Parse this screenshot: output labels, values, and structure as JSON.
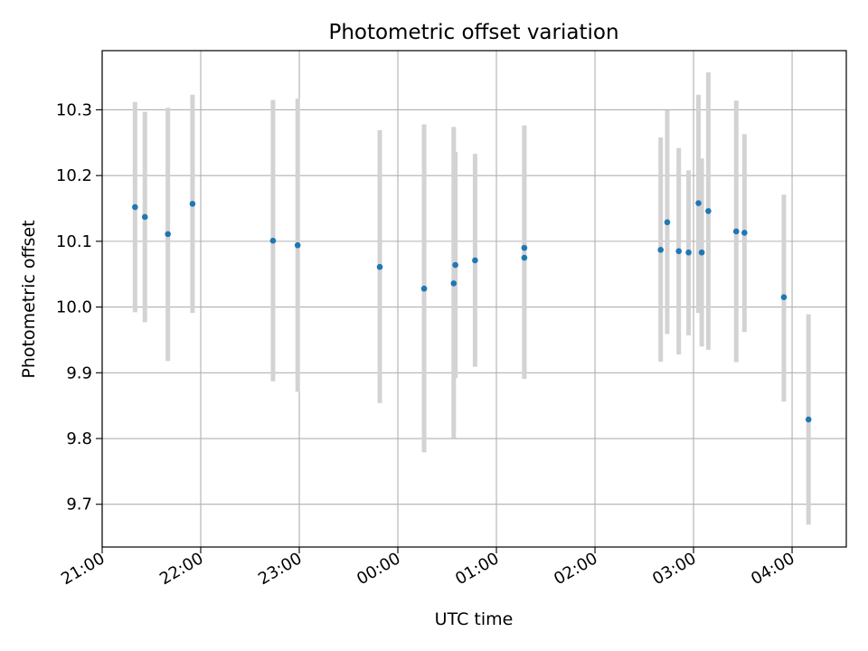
{
  "chart_data": {
    "type": "scatter",
    "title": "Photometric offset variation",
    "xlabel": "UTC time",
    "ylabel": "Photometric offset",
    "x_unit": "UTC hh:mm",
    "xlim": [
      "21:00",
      "04:33"
    ],
    "ylim": [
      9.635,
      10.39
    ],
    "x_ticks": [
      "21:00",
      "22:00",
      "23:00",
      "00:00",
      "01:00",
      "02:00",
      "03:00",
      "04:00"
    ],
    "y_ticks": [
      "9.7",
      "9.8",
      "9.9",
      "10.0",
      "10.1",
      "10.2",
      "10.3"
    ],
    "grid": true,
    "colors": {
      "points": "#1f77b4",
      "errorbars": "#d3d3d3",
      "grid": "#b0b0b0"
    },
    "series": [
      {
        "points": [
          {
            "t": "21:20",
            "y": 10.152,
            "ylow": 9.992,
            "yhigh": 10.312
          },
          {
            "t": "21:26",
            "y": 10.137,
            "ylow": 9.977,
            "yhigh": 10.297
          },
          {
            "t": "21:40",
            "y": 10.111,
            "ylow": 9.918,
            "yhigh": 10.303
          },
          {
            "t": "21:55",
            "y": 10.157,
            "ylow": 9.991,
            "yhigh": 10.323
          },
          {
            "t": "22:44",
            "y": 10.101,
            "ylow": 9.887,
            "yhigh": 10.315
          },
          {
            "t": "22:59",
            "y": 10.094,
            "ylow": 9.871,
            "yhigh": 10.317
          },
          {
            "t": "23:49",
            "y": 10.061,
            "ylow": 9.854,
            "yhigh": 10.269
          },
          {
            "t": "00:16",
            "y": 10.028,
            "ylow": 9.779,
            "yhigh": 10.278
          },
          {
            "t": "00:34",
            "y": 10.036,
            "ylow": 9.801,
            "yhigh": 10.274
          },
          {
            "t": "00:35",
            "y": 10.064,
            "ylow": 9.892,
            "yhigh": 10.236
          },
          {
            "t": "00:47",
            "y": 10.071,
            "ylow": 9.909,
            "yhigh": 10.233
          },
          {
            "t": "01:17",
            "y": 10.075,
            "ylow": 9.891,
            "yhigh": 10.276
          },
          {
            "t": "01:17",
            "y": 10.09,
            "ylow": 9.891,
            "yhigh": 10.276
          },
          {
            "t": "02:40",
            "y": 10.087,
            "ylow": 9.917,
            "yhigh": 10.258
          },
          {
            "t": "02:44",
            "y": 10.129,
            "ylow": 9.959,
            "yhigh": 10.299
          },
          {
            "t": "02:51",
            "y": 10.085,
            "ylow": 9.928,
            "yhigh": 10.242
          },
          {
            "t": "02:57",
            "y": 10.083,
            "ylow": 9.957,
            "yhigh": 10.208
          },
          {
            "t": "03:03",
            "y": 10.158,
            "ylow": 9.991,
            "yhigh": 10.323
          },
          {
            "t": "03:05",
            "y": 10.083,
            "ylow": 9.94,
            "yhigh": 10.226
          },
          {
            "t": "03:09",
            "y": 10.146,
            "ylow": 9.935,
            "yhigh": 10.357
          },
          {
            "t": "03:26",
            "y": 10.115,
            "ylow": 9.916,
            "yhigh": 10.314
          },
          {
            "t": "03:31",
            "y": 10.113,
            "ylow": 9.962,
            "yhigh": 10.263
          },
          {
            "t": "03:55",
            "y": 10.015,
            "ylow": 9.856,
            "yhigh": 10.171
          },
          {
            "t": "04:10",
            "y": 9.829,
            "ylow": 9.669,
            "yhigh": 9.989
          }
        ]
      }
    ]
  }
}
